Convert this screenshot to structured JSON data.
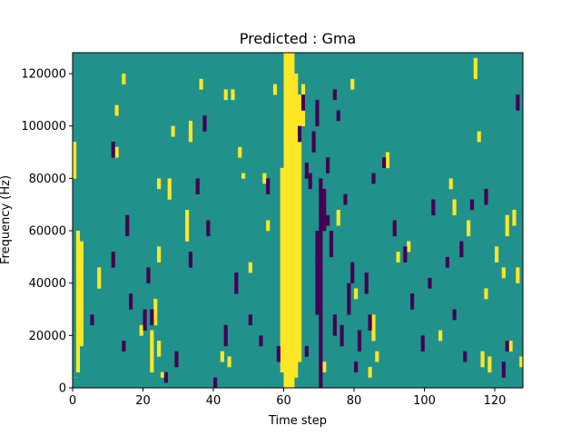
{
  "chart_data": {
    "type": "heatmap",
    "title": "Predicted : Gma",
    "xlabel": "Time step",
    "ylabel": "Frequency (Hz)",
    "xlim": [
      0,
      128
    ],
    "ylim": [
      0,
      128000
    ],
    "x_ticks": [
      0,
      20,
      40,
      60,
      80,
      100,
      120
    ],
    "y_ticks": [
      0,
      20000,
      40000,
      60000,
      80000,
      100000,
      120000
    ],
    "y_tick_labels": [
      "0",
      "20000",
      "40000",
      "60000",
      "80000",
      "100000",
      "120000"
    ],
    "colormap": "viridis",
    "colors": {
      "background": "#21918c",
      "high": "#fde725",
      "low": "#440154"
    },
    "n_time_steps": 128,
    "n_freq_bins": 64,
    "dominant_value": "mid",
    "events": {
      "high": [
        [
          0,
          40,
          47
        ],
        [
          1,
          3,
          30
        ],
        [
          2,
          8,
          28
        ],
        [
          0,
          2,
          2
        ],
        [
          2,
          21,
          23
        ],
        [
          22,
          3,
          11
        ],
        [
          23,
          12,
          17
        ],
        [
          24,
          24,
          27
        ],
        [
          25,
          2,
          3
        ],
        [
          24,
          6,
          9
        ],
        [
          59,
          3,
          42
        ],
        [
          60,
          0,
          64
        ],
        [
          61,
          0,
          64
        ],
        [
          62,
          0,
          64
        ],
        [
          63,
          2,
          60
        ],
        [
          64,
          5,
          56
        ],
        [
          65,
          50,
          58
        ],
        [
          19,
          10,
          12
        ],
        [
          24,
          38,
          40
        ],
        [
          27,
          36,
          40
        ],
        [
          28,
          48,
          50
        ],
        [
          32,
          28,
          34
        ],
        [
          47,
          44,
          46
        ],
        [
          48,
          40,
          41
        ],
        [
          54,
          39,
          41
        ],
        [
          57,
          56,
          58
        ],
        [
          55,
          30,
          32
        ],
        [
          50,
          22,
          24
        ],
        [
          84,
          2,
          4
        ],
        [
          85,
          9,
          14
        ],
        [
          86,
          5,
          7
        ],
        [
          89,
          42,
          45
        ],
        [
          92,
          24,
          26
        ],
        [
          95,
          26,
          28
        ],
        [
          104,
          9,
          11
        ],
        [
          112,
          29,
          32
        ],
        [
          117,
          17,
          19
        ],
        [
          118,
          3,
          6
        ],
        [
          120,
          24,
          27
        ],
        [
          122,
          21,
          23
        ],
        [
          123,
          29,
          33
        ],
        [
          124,
          7,
          9
        ],
        [
          125,
          31,
          34
        ],
        [
          126,
          20,
          23
        ],
        [
          127,
          4,
          6
        ],
        [
          114,
          59,
          63
        ],
        [
          75,
          31,
          34
        ],
        [
          79,
          57,
          59
        ],
        [
          80,
          17,
          19
        ],
        [
          115,
          47,
          49
        ],
        [
          107,
          38,
          40
        ],
        [
          108,
          33,
          36
        ],
        [
          33,
          47,
          51
        ],
        [
          36,
          57,
          59
        ],
        [
          43,
          55,
          57
        ],
        [
          44,
          4,
          6
        ],
        [
          45,
          55,
          57
        ],
        [
          71,
          3,
          5
        ],
        [
          116,
          4,
          7
        ],
        [
          12,
          44,
          46
        ],
        [
          12,
          52,
          54
        ],
        [
          7,
          19,
          23
        ],
        [
          42,
          5,
          7
        ],
        [
          14,
          58,
          60
        ]
      ],
      "low": [
        [
          69,
          14,
          30
        ],
        [
          70,
          0,
          40
        ],
        [
          71,
          30,
          38
        ],
        [
          72,
          41,
          44
        ],
        [
          73,
          25,
          30
        ],
        [
          74,
          10,
          14
        ],
        [
          66,
          6,
          8
        ],
        [
          67,
          38,
          41
        ],
        [
          68,
          45,
          49
        ],
        [
          69,
          50,
          55
        ],
        [
          65,
          53,
          56
        ],
        [
          78,
          14,
          20
        ],
        [
          79,
          20,
          24
        ],
        [
          80,
          3,
          5
        ],
        [
          81,
          7,
          11
        ],
        [
          83,
          18,
          22
        ],
        [
          84,
          11,
          14
        ],
        [
          76,
          8,
          12
        ],
        [
          77,
          35,
          37
        ],
        [
          75,
          51,
          53
        ],
        [
          74,
          55,
          57
        ],
        [
          73,
          26,
          28
        ],
        [
          72,
          31,
          33
        ],
        [
          5,
          12,
          14
        ],
        [
          11,
          23,
          26
        ],
        [
          11,
          44,
          47
        ],
        [
          14,
          7,
          9
        ],
        [
          15,
          29,
          33
        ],
        [
          16,
          15,
          18
        ],
        [
          20,
          11,
          15
        ],
        [
          21,
          20,
          23
        ],
        [
          22,
          12,
          15
        ],
        [
          26,
          1,
          3
        ],
        [
          29,
          4,
          7
        ],
        [
          33,
          23,
          26
        ],
        [
          35,
          37,
          40
        ],
        [
          37,
          49,
          52
        ],
        [
          38,
          29,
          32
        ],
        [
          40,
          0,
          2
        ],
        [
          43,
          8,
          12
        ],
        [
          46,
          18,
          22
        ],
        [
          50,
          12,
          14
        ],
        [
          53,
          8,
          10
        ],
        [
          55,
          37,
          40
        ],
        [
          58,
          5,
          8
        ],
        [
          64,
          47,
          50
        ],
        [
          66,
          40,
          43
        ],
        [
          85,
          39,
          41
        ],
        [
          88,
          42,
          44
        ],
        [
          91,
          29,
          32
        ],
        [
          94,
          24,
          27
        ],
        [
          96,
          15,
          18
        ],
        [
          99,
          7,
          10
        ],
        [
          102,
          33,
          36
        ],
        [
          106,
          23,
          25
        ],
        [
          108,
          13,
          15
        ],
        [
          110,
          25,
          28
        ],
        [
          113,
          34,
          36
        ],
        [
          122,
          2,
          5
        ],
        [
          123,
          7,
          9
        ],
        [
          126,
          53,
          56
        ],
        [
          117,
          35,
          38
        ],
        [
          111,
          5,
          7
        ],
        [
          101,
          19,
          21
        ]
      ]
    }
  }
}
